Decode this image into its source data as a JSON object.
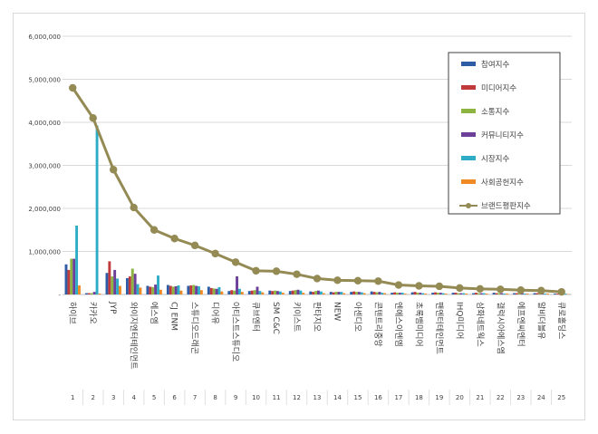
{
  "chart_data": {
    "type": "bar",
    "title": "",
    "xlabel": "",
    "ylabel": "",
    "ylim": [
      0,
      6000000
    ],
    "yticks": [
      0,
      1000000,
      2000000,
      3000000,
      4000000,
      5000000,
      6000000
    ],
    "ytick_labels": [
      "-",
      "1,000,000",
      "2,000,000",
      "3,000,000",
      "4,000,000",
      "5,000,000",
      "6,000,000"
    ],
    "gridlines": true,
    "legend_position": "top-right",
    "categories": [
      "하이브",
      "카카오",
      "JYP",
      "와이지엔터테인먼트",
      "에스엠",
      "CJ ENM",
      "스튜디오드래곤",
      "디어유",
      "아티스트스튜디오",
      "큐브엔터",
      "SM C&C",
      "키이스트",
      "판타지오",
      "NEW",
      "아센디오",
      "콘텐트리중앙",
      "엔에스이엔엠",
      "초록뱀미디어",
      "팬엔터테인먼트",
      "IHQ미디어",
      "삼화네트웍스",
      "갤럭시아에스엠",
      "에프엔씨엔터",
      "알비더블유",
      "큐로홀딩스"
    ],
    "ranks": [
      "1",
      "2",
      "3",
      "4",
      "5",
      "6",
      "7",
      "8",
      "9",
      "10",
      "11",
      "12",
      "13",
      "14",
      "15",
      "16",
      "17",
      "18",
      "19",
      "20",
      "21",
      "22",
      "23",
      "24",
      "25"
    ],
    "series": [
      {
        "name": "참여지수",
        "color": "#2e5da6",
        "kind": "bar",
        "values": [
          700000,
          30000,
          500000,
          380000,
          200000,
          220000,
          200000,
          180000,
          80000,
          80000,
          90000,
          80000,
          70000,
          60000,
          60000,
          70000,
          40000,
          50000,
          40000,
          40000,
          30000,
          40000,
          30000,
          30000,
          20000
        ]
      },
      {
        "name": "미디어지수",
        "color": "#c0393b",
        "kind": "bar",
        "values": [
          570000,
          30000,
          770000,
          420000,
          180000,
          200000,
          210000,
          150000,
          100000,
          90000,
          80000,
          90000,
          60000,
          50000,
          70000,
          60000,
          50000,
          60000,
          50000,
          40000,
          40000,
          30000,
          30000,
          30000,
          20000
        ]
      },
      {
        "name": "소통지수",
        "color": "#8db440",
        "kind": "bar",
        "values": [
          830000,
          30000,
          420000,
          600000,
          170000,
          180000,
          220000,
          140000,
          90000,
          100000,
          90000,
          100000,
          80000,
          60000,
          60000,
          50000,
          40000,
          40000,
          40000,
          30000,
          30000,
          30000,
          30000,
          20000,
          20000
        ]
      },
      {
        "name": "커뮤니티지수",
        "color": "#6c3f98",
        "kind": "bar",
        "values": [
          830000,
          60000,
          570000,
          480000,
          230000,
          190000,
          200000,
          130000,
          420000,
          180000,
          80000,
          110000,
          90000,
          60000,
          60000,
          60000,
          40000,
          40000,
          40000,
          30000,
          30000,
          30000,
          30000,
          20000,
          20000
        ]
      },
      {
        "name": "시장지수",
        "color": "#2eacc6",
        "kind": "bar",
        "values": [
          1600000,
          3920000,
          370000,
          240000,
          440000,
          210000,
          190000,
          170000,
          130000,
          80000,
          70000,
          90000,
          70000,
          60000,
          50000,
          40000,
          40000,
          30000,
          30000,
          30000,
          30000,
          20000,
          20000,
          20000,
          20000
        ]
      },
      {
        "name": "사회공헌지수",
        "color": "#f08a24",
        "kind": "bar",
        "values": [
          210000,
          20000,
          200000,
          160000,
          110000,
          90000,
          100000,
          70000,
          60000,
          50000,
          40000,
          40000,
          30000,
          30000,
          30000,
          30000,
          20000,
          20000,
          20000,
          20000,
          20000,
          20000,
          20000,
          20000,
          10000
        ]
      },
      {
        "name": "브랜드평판지수",
        "color": "#948a54",
        "kind": "line",
        "values": [
          4800000,
          4100000,
          2900000,
          2020000,
          1500000,
          1300000,
          1140000,
          950000,
          750000,
          550000,
          540000,
          470000,
          370000,
          330000,
          320000,
          310000,
          220000,
          200000,
          190000,
          150000,
          130000,
          120000,
          100000,
          90000,
          60000
        ]
      }
    ]
  }
}
